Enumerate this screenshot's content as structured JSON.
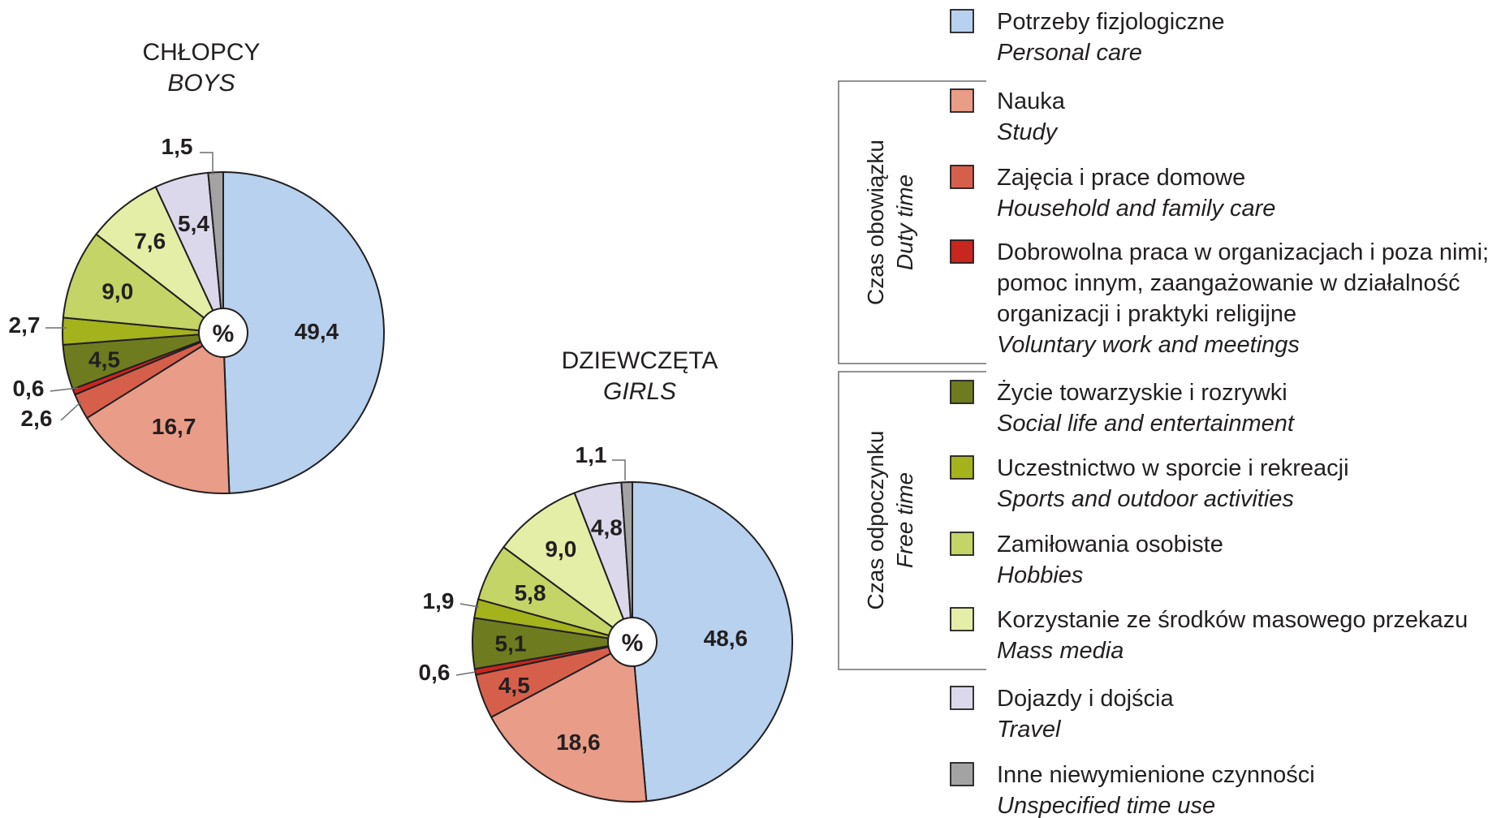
{
  "chart_data": [
    {
      "type": "pie",
      "title": "CHŁOPCY",
      "subtitle": "BOYS",
      "center_label": "%",
      "labels": [
        "Potrzeby fizjologiczne",
        "Nauka",
        "Zajęcia i prace domowe",
        "Dobrowolna praca",
        "Życie towarzyskie i rozrywki",
        "Uczestnictwo w sporcie i rekreacji",
        "Zamiłowania osobiste",
        "Korzystanie ze środków masowego przekazu",
        "Dojazdy i dojścia",
        "Inne niewymienione czynności"
      ],
      "values": [
        49.4,
        16.7,
        2.6,
        0.6,
        4.5,
        2.7,
        9.0,
        7.6,
        5.4,
        1.5
      ],
      "value_labels": [
        "49,4",
        "16,7",
        "2,6",
        "0,6",
        "4,5",
        "2,7",
        "9,0",
        "7,6",
        "5,4",
        "1,5"
      ]
    },
    {
      "type": "pie",
      "title": "DZIEWCZĘTA",
      "subtitle": "GIRLS",
      "center_label": "%",
      "labels": [
        "Potrzeby fizjologiczne",
        "Nauka",
        "Zajęcia i prace domowe",
        "Dobrowolna praca",
        "Życie towarzyskie i rozrywki",
        "Uczestnictwo w sporcie i rekreacji",
        "Zamiłowania osobiste",
        "Korzystanie ze środków masowego przekazu",
        "Dojazdy i dojścia",
        "Inne niewymienione czynności"
      ],
      "values": [
        48.6,
        18.6,
        4.5,
        0.6,
        5.1,
        1.9,
        5.8,
        9.0,
        4.8,
        1.1
      ],
      "value_labels": [
        "48,6",
        "18,6",
        "4,5",
        "0,6",
        "5,1",
        "1,9",
        "5,8",
        "9,0",
        "4,8",
        "1,1"
      ]
    }
  ],
  "colors": [
    "#b7d1ee",
    "#e99c87",
    "#d65f4c",
    "#c8261e",
    "#6e7c1f",
    "#a4b21c",
    "#c4d466",
    "#e4eea6",
    "#dcd8ec",
    "#a3a3a3"
  ],
  "legend": [
    {
      "pl": "Potrzeby fizjologiczne",
      "en": "Personal care"
    },
    {
      "pl": "Nauka",
      "en": "Study"
    },
    {
      "pl": "Zajęcia i prace domowe",
      "en": "Household and family care"
    },
    {
      "pl_lines": [
        "Dobrowolna praca w organizacjach i poza nimi;",
        "pomoc innym, zaangażowanie w działalność",
        "organizacji i praktyki religijne"
      ],
      "en": "Voluntary work and meetings"
    },
    {
      "pl": "Życie towarzyskie i rozrywki",
      "en": "Social life and entertainment"
    },
    {
      "pl": "Uczestnictwo w sporcie i rekreacji",
      "en": "Sports and outdoor activities"
    },
    {
      "pl": "Zamiłowania osobiste",
      "en": "Hobbies"
    },
    {
      "pl": "Korzystanie ze środków masowego przekazu",
      "en": "Mass media"
    },
    {
      "pl": "Dojazdy i dojścia",
      "en": "Travel"
    },
    {
      "pl": "Inne niewymienione czynności",
      "en": "Unspecified time use"
    }
  ],
  "groups": [
    {
      "pl": "Czas obowiązku",
      "en": "Duty time"
    },
    {
      "pl": "Czas odpoczynku",
      "en": "Free time"
    }
  ]
}
